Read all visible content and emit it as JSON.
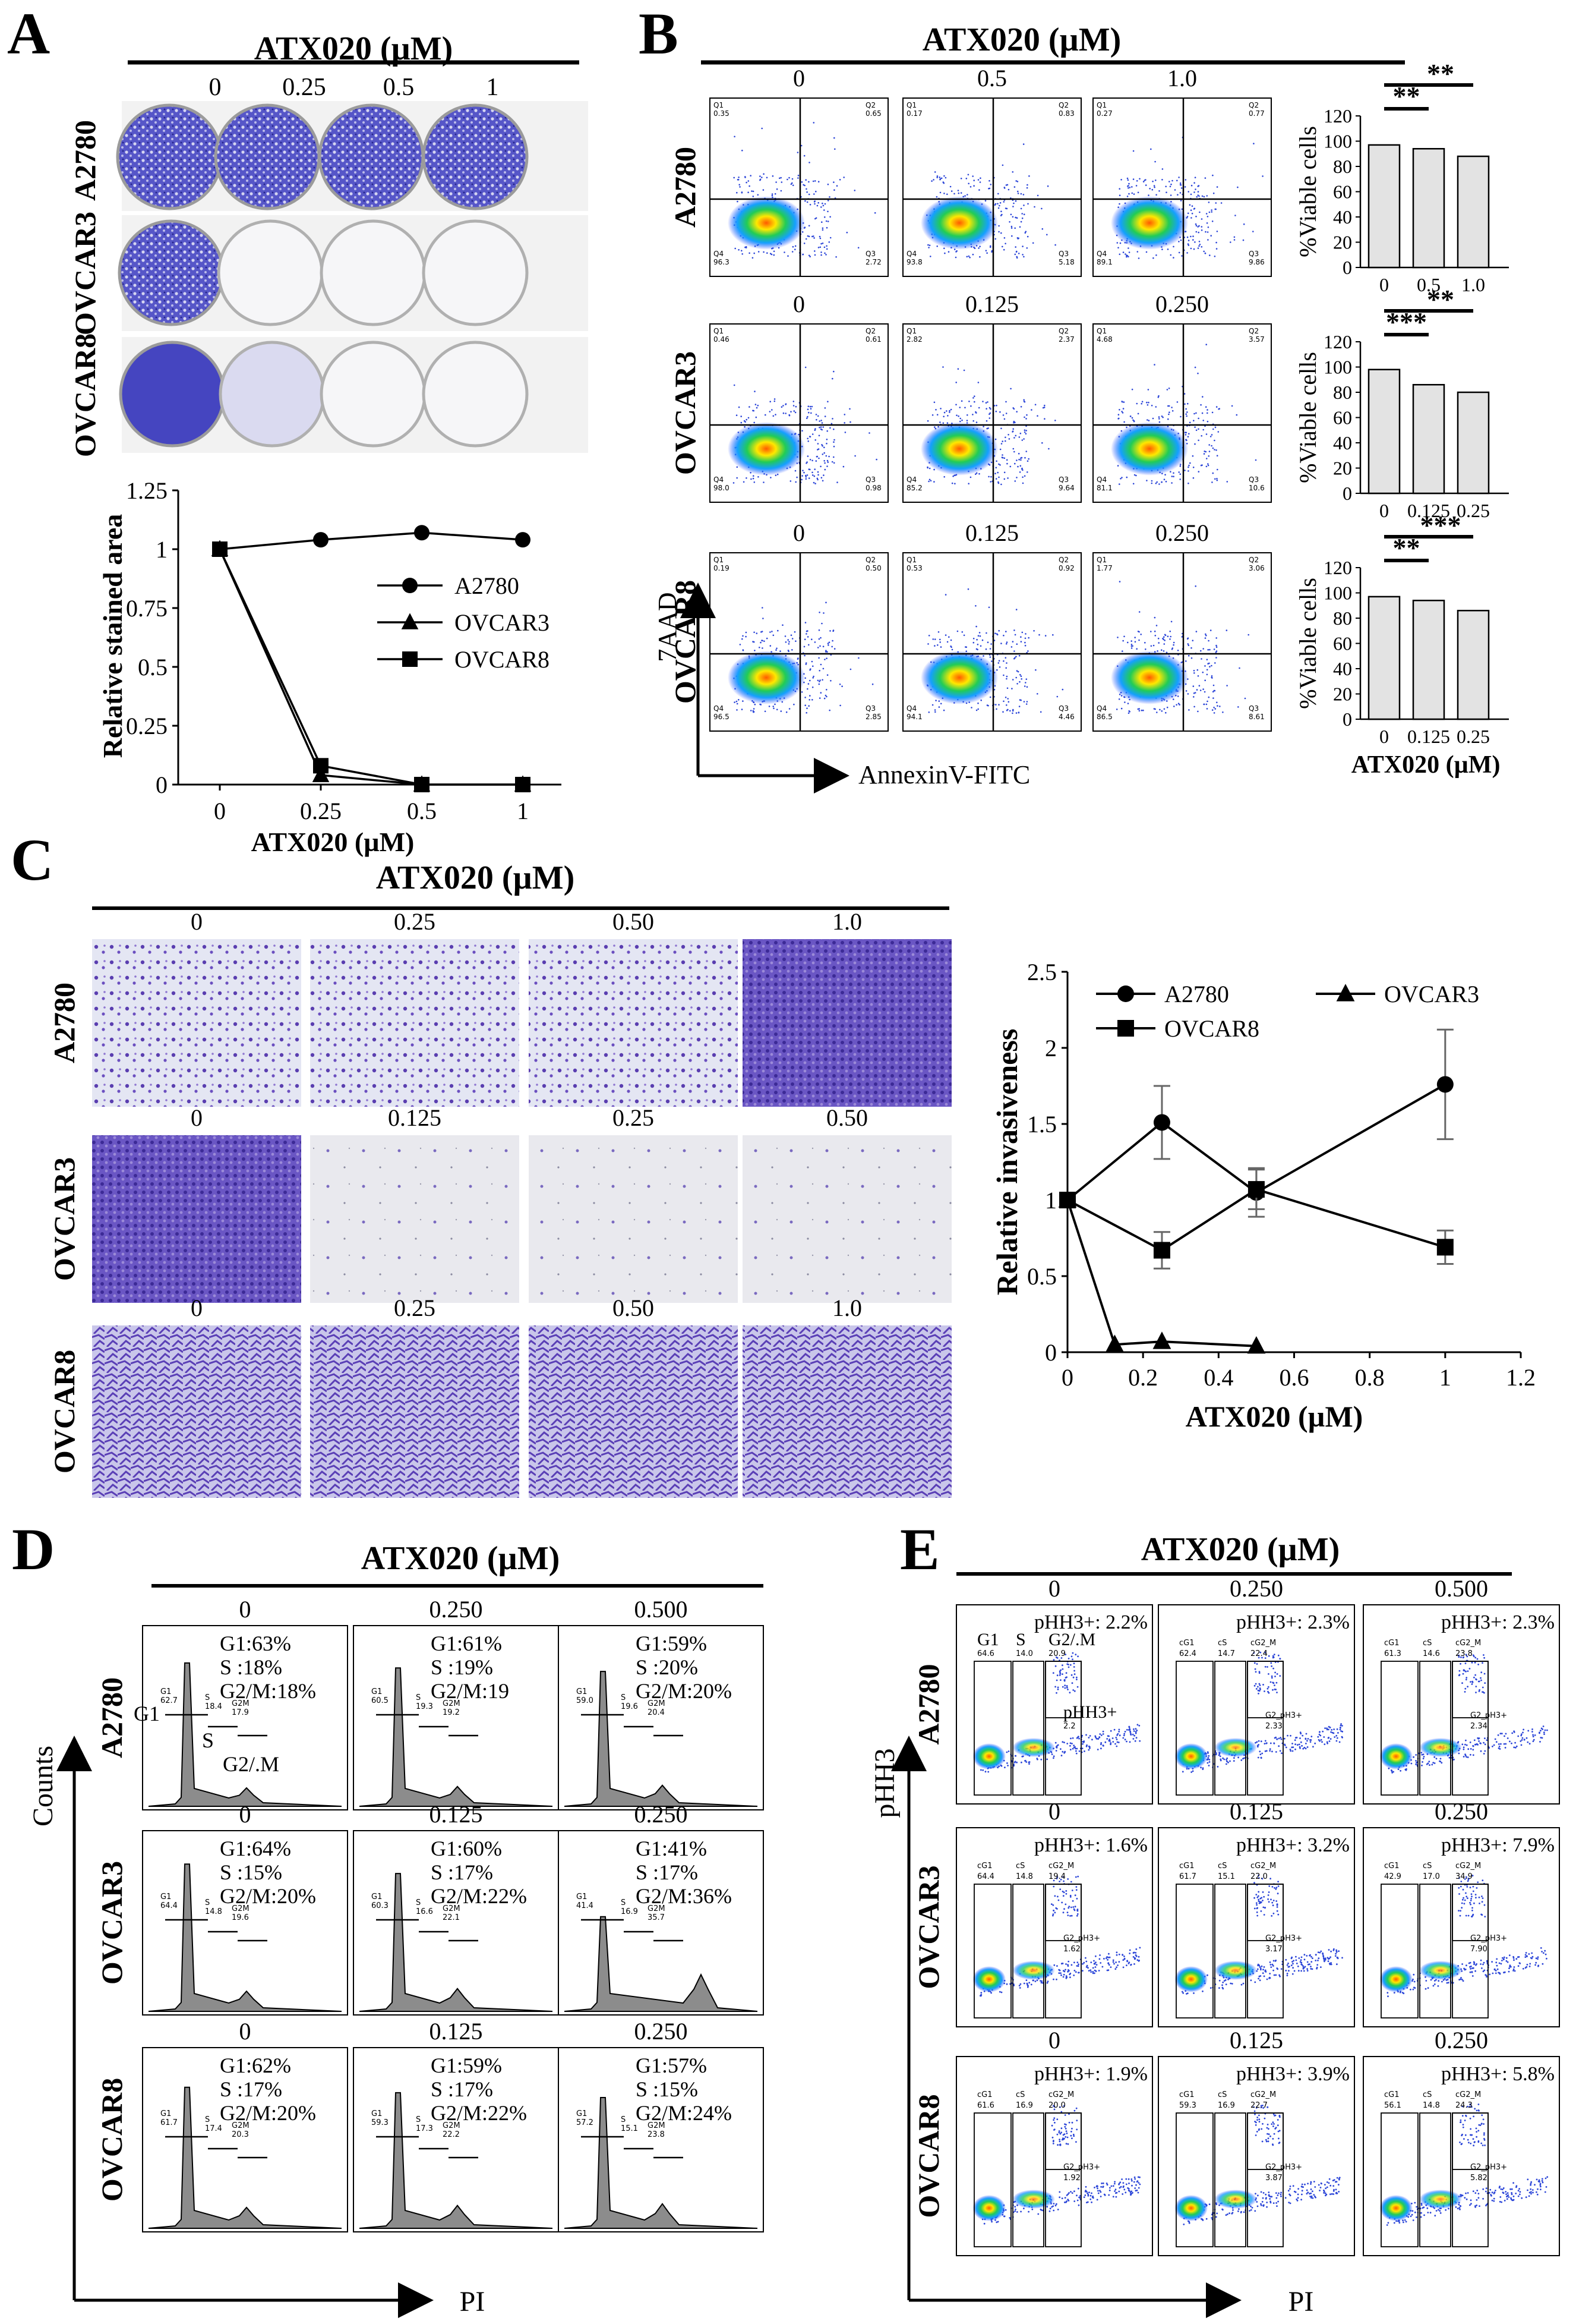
{
  "panel_letters": [
    "A",
    "B",
    "C",
    "D",
    "E"
  ],
  "treatment_label": "ATX020 (µM)",
  "cell_lines": [
    "A2780",
    "OVCAR3",
    "OVCAR8"
  ],
  "panel_a": {
    "doses": [
      "0",
      "0.25",
      "0.5",
      "1"
    ],
    "well_colors": [
      "#3f3fb8",
      "#ffffff"
    ]
  },
  "chart_data": [
    {
      "id": "A-line",
      "type": "line",
      "title": "",
      "xlabel": "ATX020 (µM)",
      "ylabel": "Relative stained area",
      "categories": [
        "0",
        "0.25",
        "0.5",
        "1"
      ],
      "ylim": [
        0,
        1.25
      ],
      "yticks": [
        "0",
        "0.25",
        "0.5",
        "0.75",
        "1",
        "1.25"
      ],
      "legend_position": "center-right",
      "series": [
        {
          "name": "A2780",
          "marker": "circle",
          "values": [
            1.0,
            1.04,
            1.07,
            1.04
          ]
        },
        {
          "name": "OVCAR3",
          "marker": "triangle",
          "values": [
            1.0,
            0.04,
            0.0,
            0.0
          ]
        },
        {
          "name": "OVCAR8",
          "marker": "square",
          "values": [
            1.0,
            0.08,
            0.0,
            0.0
          ]
        }
      ]
    },
    {
      "id": "B-bar-A2780",
      "type": "bar",
      "ylabel": "%Viable cells",
      "categories": [
        "0",
        "0.5",
        "1.0"
      ],
      "values": [
        97,
        94,
        88
      ],
      "ylim": [
        0,
        120
      ],
      "yticks": [
        "0",
        "20",
        "40",
        "60",
        "80",
        "100",
        "120"
      ],
      "significance": [
        "**",
        "**"
      ]
    },
    {
      "id": "B-bar-OVCAR3",
      "type": "bar",
      "ylabel": "%Viable cells",
      "categories": [
        "0",
        "0.125",
        "0.25"
      ],
      "values": [
        98,
        86,
        80
      ],
      "ylim": [
        0,
        120
      ],
      "yticks": [
        "0",
        "20",
        "40",
        "60",
        "80",
        "100",
        "120"
      ],
      "significance": [
        "***",
        "**"
      ]
    },
    {
      "id": "B-bar-OVCAR8",
      "type": "bar",
      "ylabel": "%Viable cells",
      "xlabel": "ATX020 (µM)",
      "categories": [
        "0",
        "0.125",
        "0.25"
      ],
      "values": [
        97,
        94,
        86
      ],
      "ylim": [
        0,
        120
      ],
      "yticks": [
        "0",
        "20",
        "40",
        "60",
        "80",
        "100",
        "120"
      ],
      "significance": [
        "**",
        "***"
      ]
    },
    {
      "id": "C-line",
      "type": "line",
      "xlabel": "ATX020 (µM)",
      "ylabel": "Relative invasiveness",
      "xlim": [
        0,
        1.2
      ],
      "ylim": [
        0,
        2.5
      ],
      "xticks": [
        "0",
        "0.2",
        "0.4",
        "0.6",
        "0.8",
        "1",
        "1.2"
      ],
      "yticks": [
        "0",
        "0.5",
        "1",
        "1.5",
        "2",
        "2.5"
      ],
      "legend_position": "top",
      "series": [
        {
          "name": "A2780",
          "marker": "circle",
          "x": [
            0,
            0.25,
            0.5,
            1.0
          ],
          "values": [
            1.0,
            1.51,
            1.05,
            1.76
          ],
          "errors": [
            0.03,
            0.24,
            0.16,
            0.36
          ]
        },
        {
          "name": "OVCAR3",
          "marker": "triangle",
          "x": [
            0,
            0.125,
            0.25,
            0.5
          ],
          "values": [
            1.0,
            0.05,
            0.07,
            0.04
          ],
          "errors": [
            0,
            0,
            0,
            0
          ]
        },
        {
          "name": "OVCAR8",
          "marker": "square",
          "x": [
            0,
            0.25,
            0.5,
            1.0
          ],
          "values": [
            1.0,
            0.67,
            1.07,
            0.69
          ],
          "errors": [
            0.03,
            0.12,
            0.13,
            0.11
          ]
        }
      ]
    }
  ],
  "panel_b": {
    "doses": [
      [
        "0",
        "0.5",
        "1.0"
      ],
      [
        "0",
        "0.125",
        "0.250"
      ],
      [
        "0",
        "0.125",
        "0.250"
      ]
    ],
    "quadrants": [
      [
        [
          "0.35",
          "0.65",
          "2.72",
          "96.3"
        ],
        [
          "0.17",
          "0.83",
          "5.18",
          "93.8"
        ],
        [
          "0.27",
          "0.77",
          "9.86",
          "89.1"
        ]
      ],
      [
        [
          "0.46",
          "0.61",
          "0.98",
          "98.0"
        ],
        [
          "2.82",
          "2.37",
          "9.64",
          "85.2"
        ],
        [
          "4.68",
          "3.57",
          "10.6",
          "81.1"
        ]
      ],
      [
        [
          "0.19",
          "0.50",
          "2.85",
          "96.5"
        ],
        [
          "0.53",
          "0.92",
          "4.46",
          "94.1"
        ],
        [
          "1.77",
          "3.06",
          "8.61",
          "86.5"
        ]
      ]
    ],
    "gate_names": [
      "Q1",
      "Q2",
      "Q3",
      "Q4"
    ],
    "x_axis": "AnnexinV-FITC",
    "y_axis": "7AAD"
  },
  "panel_c": {
    "doses": [
      [
        "0",
        "0.25",
        "0.50",
        "1.0"
      ],
      [
        "0",
        "0.125",
        "0.25",
        "0.50"
      ],
      [
        "0",
        "0.25",
        "0.50",
        "1.0"
      ]
    ]
  },
  "panel_d": {
    "doses": [
      [
        "0",
        "0.250",
        "0.500"
      ],
      [
        "0",
        "0.125",
        "0.250"
      ],
      [
        "0",
        "0.125",
        "0.250"
      ]
    ],
    "stats": [
      [
        [
          "G1:63%",
          "S :18%",
          "G2/M:18%"
        ],
        [
          "G1:61%",
          "S :19%",
          "G2/M:19"
        ],
        [
          "G1:59%",
          "S :20%",
          "G2/M:20%"
        ]
      ],
      [
        [
          "G1:64%",
          "S :15%",
          "G2/M:20%"
        ],
        [
          "G1:60%",
          "S :17%",
          "G2/M:22%"
        ],
        [
          "G1:41%",
          "S :17%",
          "G2/M:36%"
        ]
      ],
      [
        [
          "G1:62%",
          "S :17%",
          "G2/M:20%"
        ],
        [
          "G1:59%",
          "S :17%",
          "G2/M:22%"
        ],
        [
          "G1:57%",
          "S :15%",
          "G2/M:24%"
        ]
      ]
    ],
    "gate_values": [
      [
        [
          "62.7",
          "18.4",
          "17.9"
        ],
        [
          "60.5",
          "19.3",
          "19.2"
        ],
        [
          "59.0",
          "19.6",
          "20.4"
        ]
      ],
      [
        [
          "64.4",
          "14.8",
          "19.6"
        ],
        [
          "60.3",
          "16.6",
          "22.1"
        ],
        [
          "41.4",
          "16.9",
          "35.7"
        ]
      ],
      [
        [
          "61.7",
          "17.4",
          "20.3"
        ],
        [
          "59.3",
          "17.3",
          "22.2"
        ],
        [
          "57.2",
          "15.1",
          "23.8"
        ]
      ]
    ],
    "gate_names": [
      "G1",
      "S",
      "G2M"
    ],
    "phase_labels": [
      "G1",
      "S",
      "G2/.M"
    ],
    "x_axis": "PI",
    "y_axis": "Counts"
  },
  "panel_e": {
    "doses": [
      [
        "0",
        "0.250",
        "0.500"
      ],
      [
        "0",
        "0.125",
        "0.250"
      ],
      [
        "0",
        "0.125",
        "0.250"
      ]
    ],
    "ph3": [
      [
        "pHH3+: 2.2%",
        "pHH3+: 2.3%",
        "pHH3+: 2.3%"
      ],
      [
        "pHH3+: 1.6%",
        "pHH3+: 3.2%",
        "pHH3+: 7.9%"
      ],
      [
        "pHH3+: 1.9%",
        "pHH3+: 3.9%",
        "pHH3+: 5.8%"
      ]
    ],
    "gates": [
      [
        [
          "64.6",
          "14.0",
          "20.9",
          "2.2"
        ],
        [
          "62.4",
          "14.7",
          "22.4",
          "2.33"
        ],
        [
          "61.3",
          "14.6",
          "23.8",
          "2.34"
        ]
      ],
      [
        [
          "64.4",
          "14.8",
          "19.4",
          "1.62"
        ],
        [
          "61.7",
          "15.1",
          "22.0",
          "3.17"
        ],
        [
          "42.9",
          "17.0",
          "34.9",
          "7.90"
        ]
      ],
      [
        [
          "61.6",
          "16.9",
          "20.0",
          "1.92"
        ],
        [
          "59.3",
          "16.9",
          "22.7",
          "3.87"
        ],
        [
          "56.1",
          "14.8",
          "24.3",
          "5.82"
        ]
      ]
    ],
    "gate_names": [
      "cG1",
      "cS",
      "cG2_M",
      "G2_pH3+"
    ],
    "first_labels": [
      "G1",
      "S",
      "G2/.M",
      "pHH3+"
    ],
    "x_axis": "PI",
    "y_axis": "pHH3"
  }
}
